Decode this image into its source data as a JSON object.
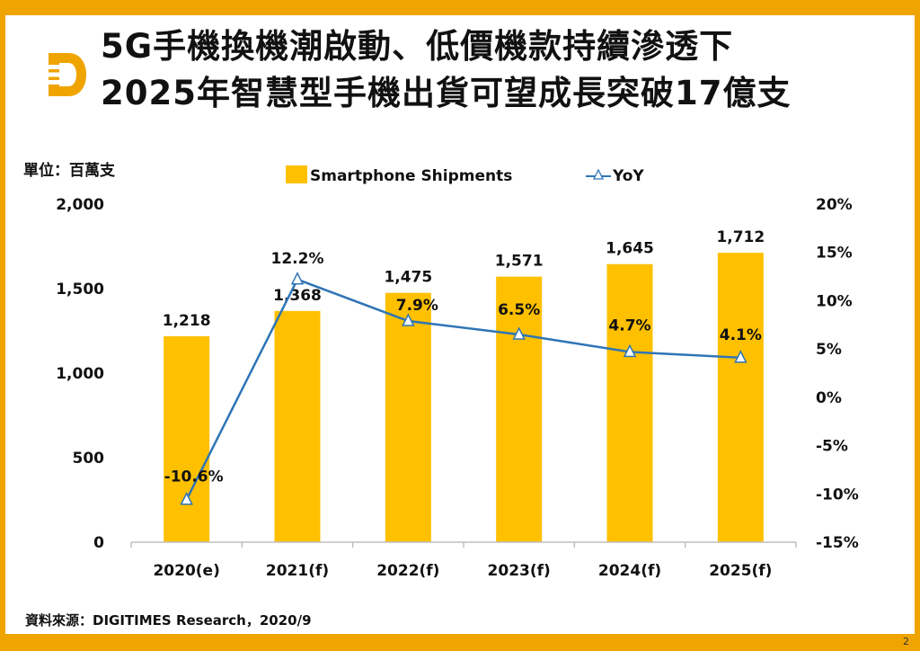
{
  "header": {
    "title_line1": "5G手機換機潮啟動、低價機款持續滲透下",
    "title_line2": "2025年智慧型手機出貨可望成長突破17億支",
    "logo": "digitimes-d-logo-icon"
  },
  "unit_label": "單位：百萬支",
  "source": "資料來源：DIGITIMES Research，2020/9",
  "page_number": "2",
  "colors": {
    "frame": "#f0a400",
    "bar": "#ffc000",
    "line": "#2e75b6",
    "marker_fill": "#ffffff"
  },
  "chart_data": {
    "type": "bar",
    "categories": [
      "2020(e)",
      "2021(f)",
      "2022(f)",
      "2023(f)",
      "2024(f)",
      "2025(f)"
    ],
    "series": [
      {
        "name": "Smartphone Shipments",
        "type": "bar",
        "axis": "left",
        "values": [
          1218,
          1368,
          1475,
          1571,
          1645,
          1712
        ],
        "labels": [
          "1,218",
          "1,368",
          "1,475",
          "1,571",
          "1,645",
          "1,712"
        ]
      },
      {
        "name": "YoY",
        "type": "line",
        "axis": "right",
        "values": [
          -10.6,
          12.2,
          7.9,
          6.5,
          4.7,
          4.1
        ],
        "labels": [
          "-10.6%",
          "12.2%",
          "7.9%",
          "6.5%",
          "4.7%",
          "4.1%"
        ]
      }
    ],
    "y_left": {
      "min": 0,
      "max": 2000,
      "ticks": [
        0,
        500,
        1000,
        1500,
        2000
      ],
      "tick_labels": [
        "0",
        "500",
        "1,000",
        "1,500",
        "2,000"
      ]
    },
    "y_right": {
      "min": -15,
      "max": 20,
      "ticks": [
        -15,
        -10,
        -5,
        0,
        5,
        10,
        15,
        20
      ],
      "tick_labels": [
        "-15%",
        "-10%",
        "-5%",
        "0%",
        "5%",
        "10%",
        "15%",
        "20%"
      ]
    },
    "legend_position": "top",
    "grid": false
  }
}
